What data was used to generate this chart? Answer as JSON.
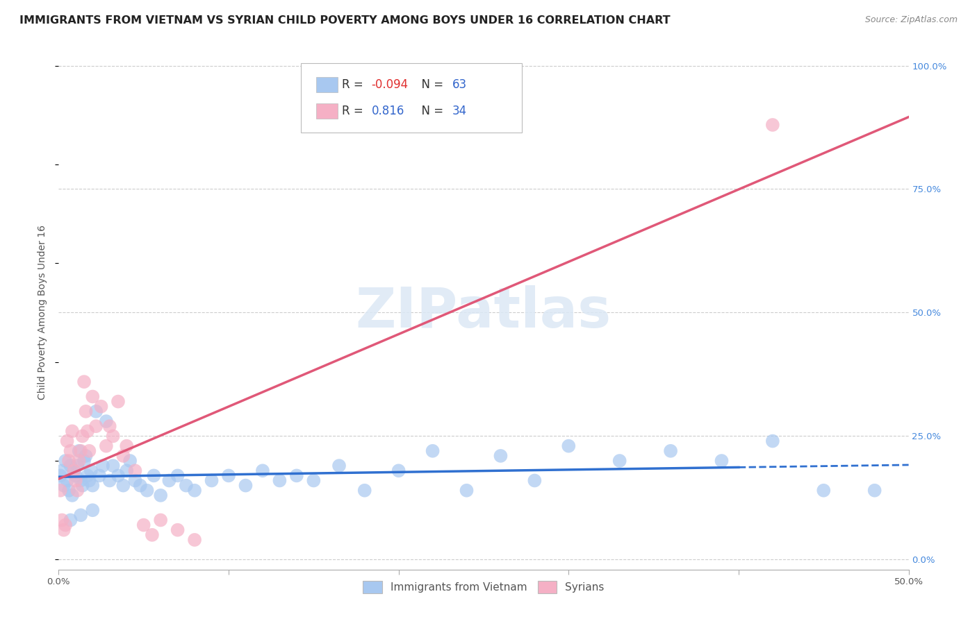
{
  "title": "IMMIGRANTS FROM VIETNAM VS SYRIAN CHILD POVERTY AMONG BOYS UNDER 16 CORRELATION CHART",
  "source": "Source: ZipAtlas.com",
  "ylabel": "Child Poverty Among Boys Under 16",
  "xlim": [
    0.0,
    0.5
  ],
  "ylim": [
    -0.02,
    1.02
  ],
  "xticks": [
    0.0,
    0.1,
    0.2,
    0.3,
    0.4,
    0.5
  ],
  "xticklabels": [
    "0.0%",
    "",
    "",
    "",
    "",
    "50.0%"
  ],
  "yticks_right": [
    0.0,
    0.25,
    0.5,
    0.75,
    1.0
  ],
  "yticklabels_right": [
    "0.0%",
    "25.0%",
    "50.0%",
    "75.0%",
    "100.0%"
  ],
  "legend_r_vietnam": "-0.094",
  "legend_n_vietnam": "63",
  "legend_r_syrian": "0.816",
  "legend_n_syrian": "34",
  "vietnam_color": "#A8C8F0",
  "syrian_color": "#F5B0C5",
  "vietnam_line_color": "#3070D0",
  "syrian_line_color": "#E05878",
  "watermark": "ZIPatlas",
  "legend_label_vietnam": "Immigrants from Vietnam",
  "legend_label_syrian": "Syrians",
  "vietnam_x": [
    0.001,
    0.002,
    0.003,
    0.004,
    0.005,
    0.006,
    0.007,
    0.008,
    0.009,
    0.01,
    0.011,
    0.012,
    0.013,
    0.014,
    0.015,
    0.016,
    0.017,
    0.018,
    0.019,
    0.02,
    0.022,
    0.024,
    0.026,
    0.028,
    0.03,
    0.032,
    0.035,
    0.038,
    0.04,
    0.042,
    0.045,
    0.048,
    0.052,
    0.056,
    0.06,
    0.065,
    0.07,
    0.075,
    0.08,
    0.09,
    0.1,
    0.11,
    0.12,
    0.13,
    0.14,
    0.15,
    0.165,
    0.18,
    0.2,
    0.22,
    0.24,
    0.26,
    0.28,
    0.3,
    0.33,
    0.36,
    0.39,
    0.42,
    0.45,
    0.48,
    0.007,
    0.013,
    0.02
  ],
  "vietnam_y": [
    0.17,
    0.18,
    0.15,
    0.2,
    0.16,
    0.14,
    0.19,
    0.13,
    0.18,
    0.17,
    0.19,
    0.22,
    0.16,
    0.15,
    0.2,
    0.21,
    0.17,
    0.16,
    0.18,
    0.15,
    0.3,
    0.17,
    0.19,
    0.28,
    0.16,
    0.19,
    0.17,
    0.15,
    0.18,
    0.2,
    0.16,
    0.15,
    0.14,
    0.17,
    0.13,
    0.16,
    0.17,
    0.15,
    0.14,
    0.16,
    0.17,
    0.15,
    0.18,
    0.16,
    0.17,
    0.16,
    0.19,
    0.14,
    0.18,
    0.22,
    0.14,
    0.21,
    0.16,
    0.23,
    0.2,
    0.22,
    0.2,
    0.24,
    0.14,
    0.14,
    0.08,
    0.09,
    0.1
  ],
  "syrian_x": [
    0.001,
    0.002,
    0.003,
    0.004,
    0.005,
    0.006,
    0.007,
    0.008,
    0.009,
    0.01,
    0.011,
    0.012,
    0.013,
    0.014,
    0.015,
    0.016,
    0.017,
    0.018,
    0.02,
    0.022,
    0.025,
    0.028,
    0.03,
    0.032,
    0.035,
    0.038,
    0.04,
    0.045,
    0.05,
    0.055,
    0.06,
    0.07,
    0.08,
    0.42
  ],
  "syrian_y": [
    0.14,
    0.08,
    0.06,
    0.07,
    0.24,
    0.2,
    0.22,
    0.26,
    0.18,
    0.16,
    0.14,
    0.2,
    0.22,
    0.25,
    0.36,
    0.3,
    0.26,
    0.22,
    0.33,
    0.27,
    0.31,
    0.23,
    0.27,
    0.25,
    0.32,
    0.21,
    0.23,
    0.18,
    0.07,
    0.05,
    0.08,
    0.06,
    0.04,
    0.88
  ],
  "background_color": "#ffffff",
  "grid_color": "#cccccc",
  "title_fontsize": 11.5,
  "axis_label_fontsize": 10,
  "tick_fontsize": 9.5,
  "source_fontsize": 9
}
